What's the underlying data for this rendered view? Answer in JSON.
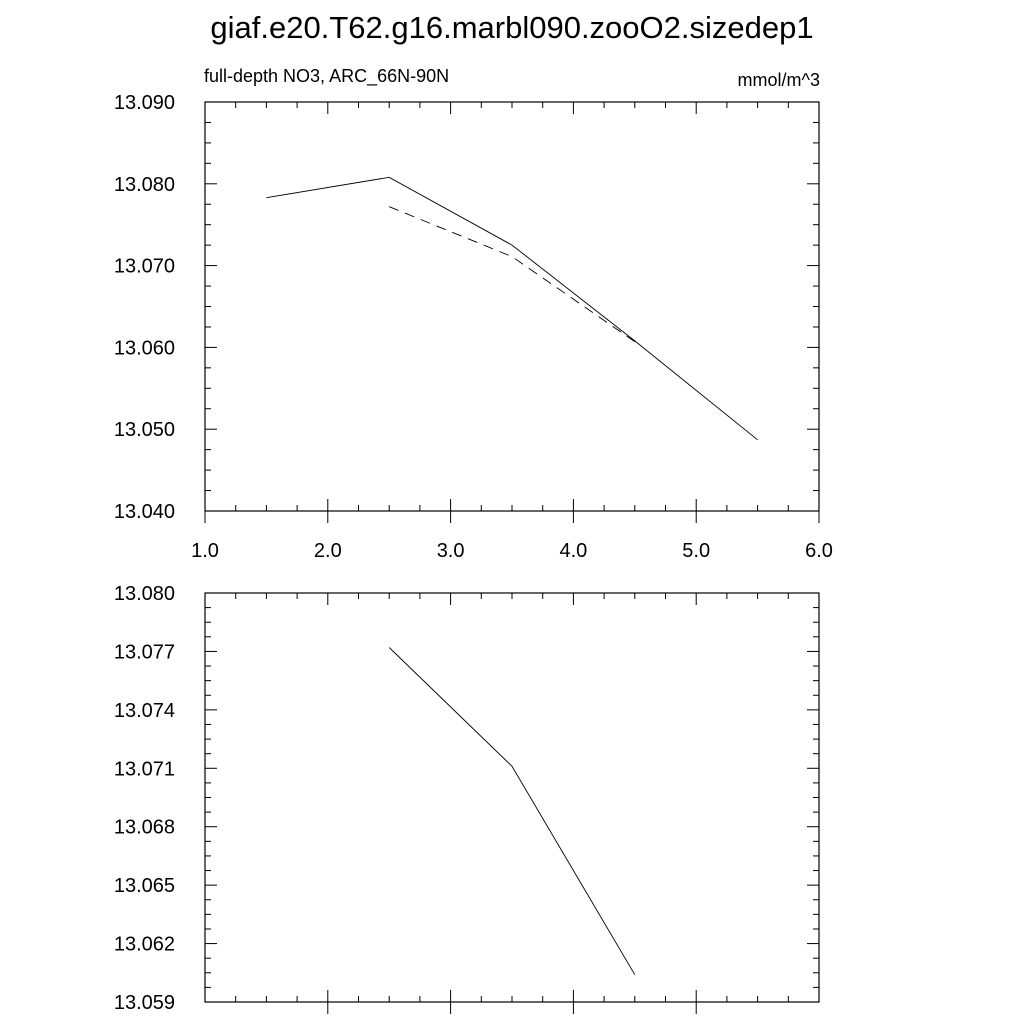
{
  "title": "giaf.e20.T62.g16.marbl090.zooO2.sizedep1",
  "chart_data": [
    {
      "type": "line",
      "left_label": "full-depth NO3, ARC_66N-90N",
      "right_label": "mmol/m^3",
      "xlim": [
        1.0,
        6.0
      ],
      "ylim": [
        13.04,
        13.09
      ],
      "x_ticks": [
        "1.0",
        "2.0",
        "3.0",
        "4.0",
        "5.0",
        "6.0"
      ],
      "y_ticks": [
        "13.040",
        "13.050",
        "13.060",
        "13.070",
        "13.080",
        "13.090"
      ],
      "series": [
        {
          "style": "solid",
          "x": [
            1.5,
            2.5,
            3.5,
            4.5,
            5.5
          ],
          "y": [
            13.0783,
            13.0808,
            13.0725,
            13.0608,
            13.0487
          ]
        },
        {
          "style": "dashed",
          "x": [
            2.5,
            3.5,
            4.5
          ],
          "y": [
            13.0772,
            13.0711,
            13.0607
          ]
        }
      ]
    },
    {
      "type": "line",
      "xlim": [
        1.0,
        6.0
      ],
      "ylim": [
        13.059,
        13.08
      ],
      "y_ticks": [
        "13.059",
        "13.062",
        "13.065",
        "13.068",
        "13.071",
        "13.074",
        "13.077",
        "13.080"
      ],
      "series": [
        {
          "style": "solid",
          "x": [
            2.5,
            3.5,
            4.5
          ],
          "y": [
            13.0772,
            13.0711,
            13.0604
          ]
        }
      ]
    }
  ]
}
